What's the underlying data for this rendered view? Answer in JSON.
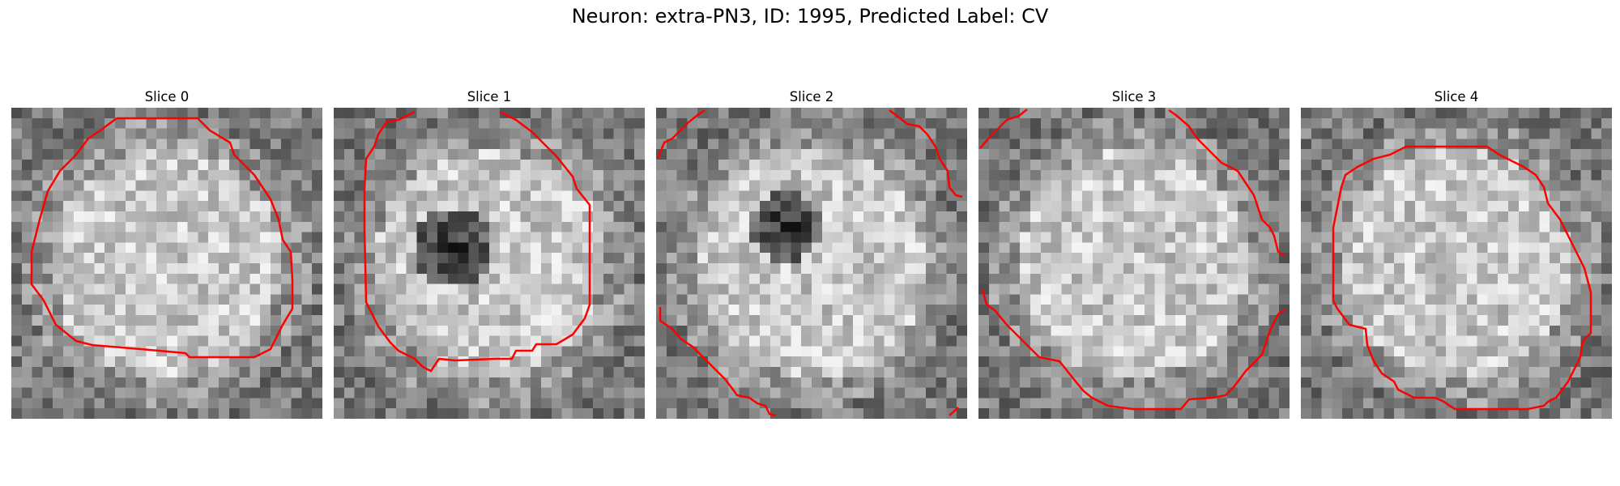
{
  "figure": {
    "suptitle": "Neuron: extra-PN3, ID: 1995, Predicted Label: CV",
    "contour_color": "#ff0000",
    "colormap": "gray"
  },
  "panels": [
    {
      "title": "Slice 0",
      "dark_spot": null
    },
    {
      "title": "Slice 1",
      "dark_spot": "center-left"
    },
    {
      "title": "Slice 2",
      "dark_spot": "center"
    },
    {
      "title": "Slice 3",
      "dark_spot": null
    },
    {
      "title": "Slice 4",
      "dark_spot": null
    }
  ]
}
